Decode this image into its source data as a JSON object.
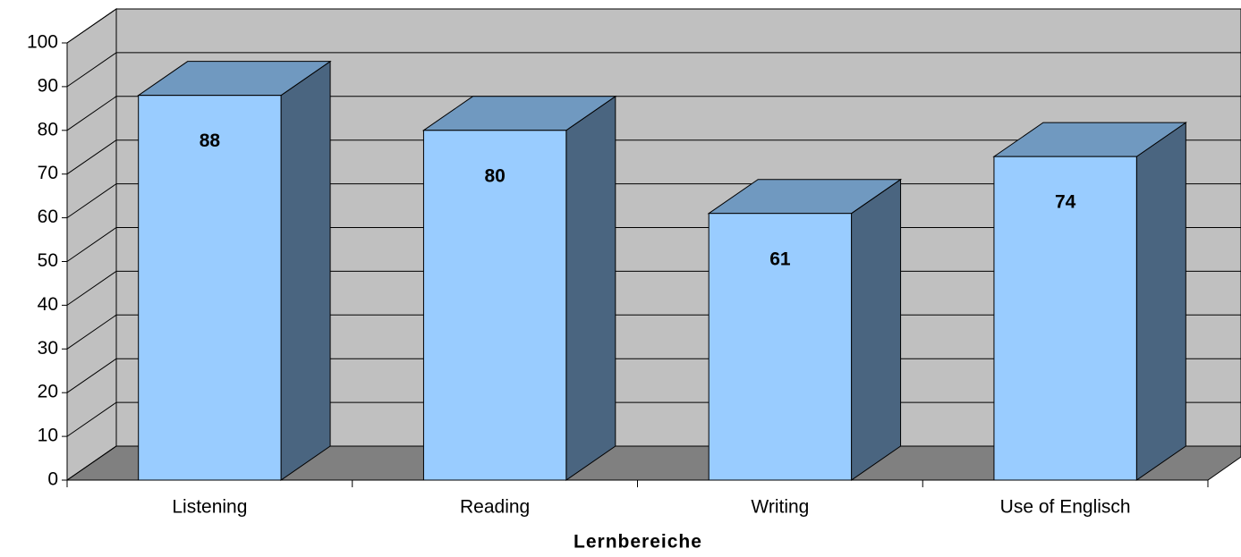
{
  "chart_data": {
    "type": "bar",
    "categories": [
      "Listening",
      "Reading",
      "Writing",
      "Use of Englisch"
    ],
    "values": [
      88,
      80,
      61,
      74
    ],
    "xlabel": "Lernbereiche",
    "ylim": [
      0,
      100
    ],
    "yticks": [
      0,
      10,
      20,
      30,
      40,
      50,
      60,
      70,
      80,
      90,
      100
    ],
    "grid": true,
    "color": "#99ccff",
    "side_color": "#4a6580",
    "top_color": "#7099c0"
  }
}
